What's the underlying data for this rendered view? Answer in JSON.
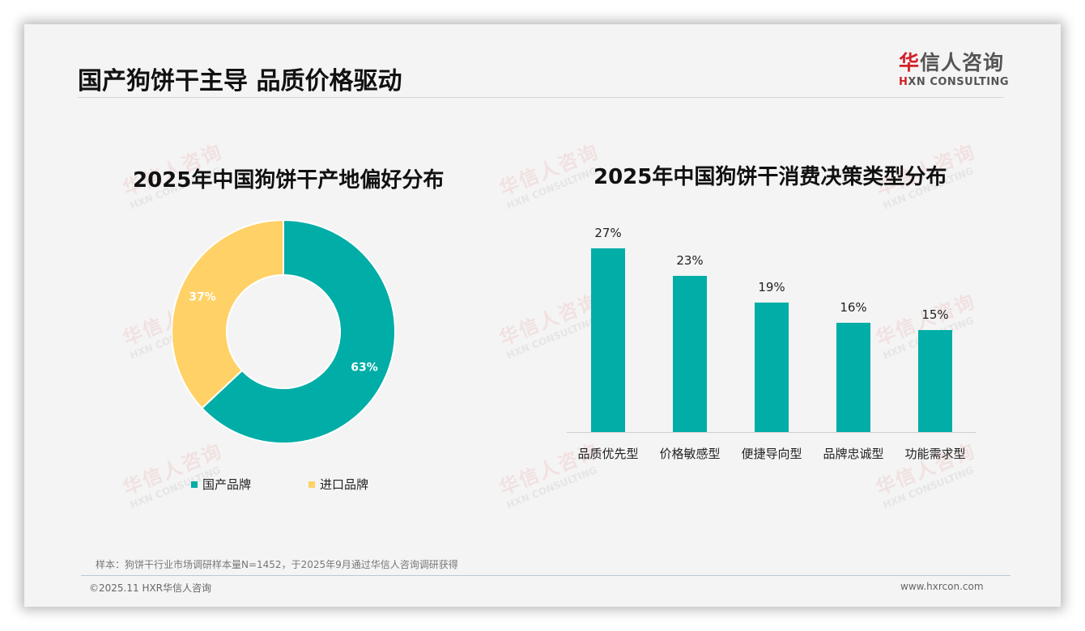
{
  "header": {
    "title": "国产狗饼干主导 品质价格驱动",
    "logo": {
      "cn_red": "华",
      "cn_rest": "信人咨询",
      "en_red": "H",
      "en_rest": "XN CONSULTING"
    }
  },
  "watermark": {
    "cn": "华信人咨询",
    "en": "HXN CONSULTING"
  },
  "colors": {
    "teal": "#00ada7",
    "yellow": "#ffd166",
    "brand_red": "#d32027"
  },
  "chart_data": [
    {
      "type": "pie",
      "variant": "donut",
      "title": "2025年中国狗饼干产地偏好分布",
      "categories": [
        "国产品牌",
        "进口品牌"
      ],
      "values": [
        63,
        37
      ],
      "labels": [
        "63%",
        "37%"
      ],
      "colors": [
        "#00ada7",
        "#ffd166"
      ],
      "legend_position": "bottom"
    },
    {
      "type": "bar",
      "title": "2025年中国狗饼干消费决策类型分布",
      "categories": [
        "品质优先型",
        "价格敏感型",
        "便捷导向型",
        "品牌忠诚型",
        "功能需求型"
      ],
      "values": [
        27,
        23,
        19,
        16,
        15
      ],
      "labels": [
        "27%",
        "23%",
        "19%",
        "16%",
        "15%"
      ],
      "color": "#00ada7",
      "xlabel": "",
      "ylabel": "",
      "ylim": [
        0,
        30
      ],
      "grid": false,
      "value_axis_visible": false
    }
  ],
  "footer": {
    "source": "样本：狗饼干行业市场调研样本量N=1452，于2025年9月通过华信人咨询调研获得",
    "copyright": "©2025.11 HXR华信人咨询",
    "website": "www.hxrcon.com"
  }
}
